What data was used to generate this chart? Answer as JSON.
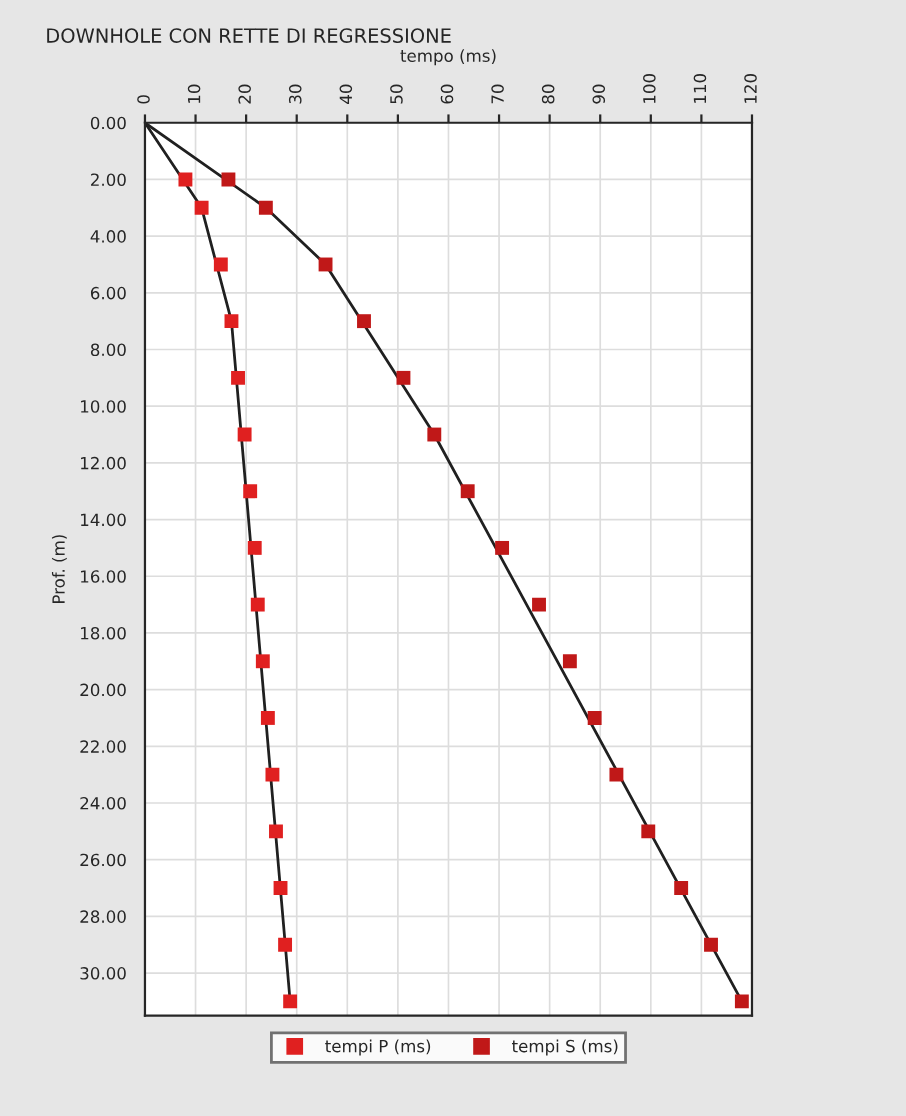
{
  "chart_data": {
    "type": "scatter",
    "title": "DOWNHOLE CON RETTE DI REGRESSIONE",
    "xlabel": "tempo (ms)",
    "ylabel": "Prof. (m)",
    "xlim": [
      0,
      120
    ],
    "xticks": [
      0,
      10,
      20,
      30,
      40,
      50,
      60,
      70,
      80,
      90,
      100,
      110,
      120
    ],
    "ylim": [
      31.5,
      0
    ],
    "yticks": [
      {
        "value": 0,
        "label": "0.00"
      },
      {
        "value": 2,
        "label": "2.00"
      },
      {
        "value": 4,
        "label": "4.00"
      },
      {
        "value": 6,
        "label": "6.00"
      },
      {
        "value": 8,
        "label": "8.00"
      },
      {
        "value": 10,
        "label": "10.00"
      },
      {
        "value": 12,
        "label": "12.00"
      },
      {
        "value": 14,
        "label": "14.00"
      },
      {
        "value": 16,
        "label": "16.00"
      },
      {
        "value": 18,
        "label": "18.00"
      },
      {
        "value": 20,
        "label": "20.00"
      },
      {
        "value": 22,
        "label": "22.00"
      },
      {
        "value": 24,
        "label": "24.00"
      },
      {
        "value": 26,
        "label": "26.00"
      },
      {
        "value": 28,
        "label": "28.00"
      },
      {
        "value": 30,
        "label": "30.00"
      }
    ],
    "grid": true,
    "legend": "bottom",
    "marker": "square",
    "series": [
      {
        "name": "tempi P (ms)",
        "color": "#e02020",
        "x": [
          8.0,
          11.2,
          15.0,
          17.1,
          18.4,
          19.7,
          20.8,
          21.7,
          22.3,
          23.3,
          24.3,
          25.2,
          25.9,
          26.8,
          27.7,
          28.7
        ],
        "values": [
          2,
          3,
          5,
          7,
          9,
          11,
          13,
          15,
          17,
          19,
          21,
          23,
          25,
          27,
          29,
          31
        ]
      },
      {
        "name": "tempi S (ms)",
        "color": "#c01818",
        "x": [
          16.5,
          23.9,
          35.7,
          43.3,
          51.1,
          57.2,
          63.8,
          70.6,
          77.9,
          84.0,
          88.9,
          93.2,
          99.5,
          106.0,
          111.9,
          118.0
        ],
        "values": [
          2,
          3,
          5,
          7,
          9,
          11,
          13,
          15,
          17,
          19,
          21,
          23,
          25,
          27,
          29,
          31
        ]
      },
      {
        "type": "line",
        "marker": "none",
        "color": "#202020",
        "x": [
          0,
          11.2,
          17.1,
          28.7
        ],
        "values": [
          0,
          3,
          7,
          31
        ]
      },
      {
        "type": "line",
        "marker": "none",
        "color": "#202020",
        "x": [
          0,
          23.9,
          35.7,
          57.2,
          118.0
        ],
        "values": [
          0,
          3,
          5,
          11,
          31
        ]
      }
    ]
  }
}
